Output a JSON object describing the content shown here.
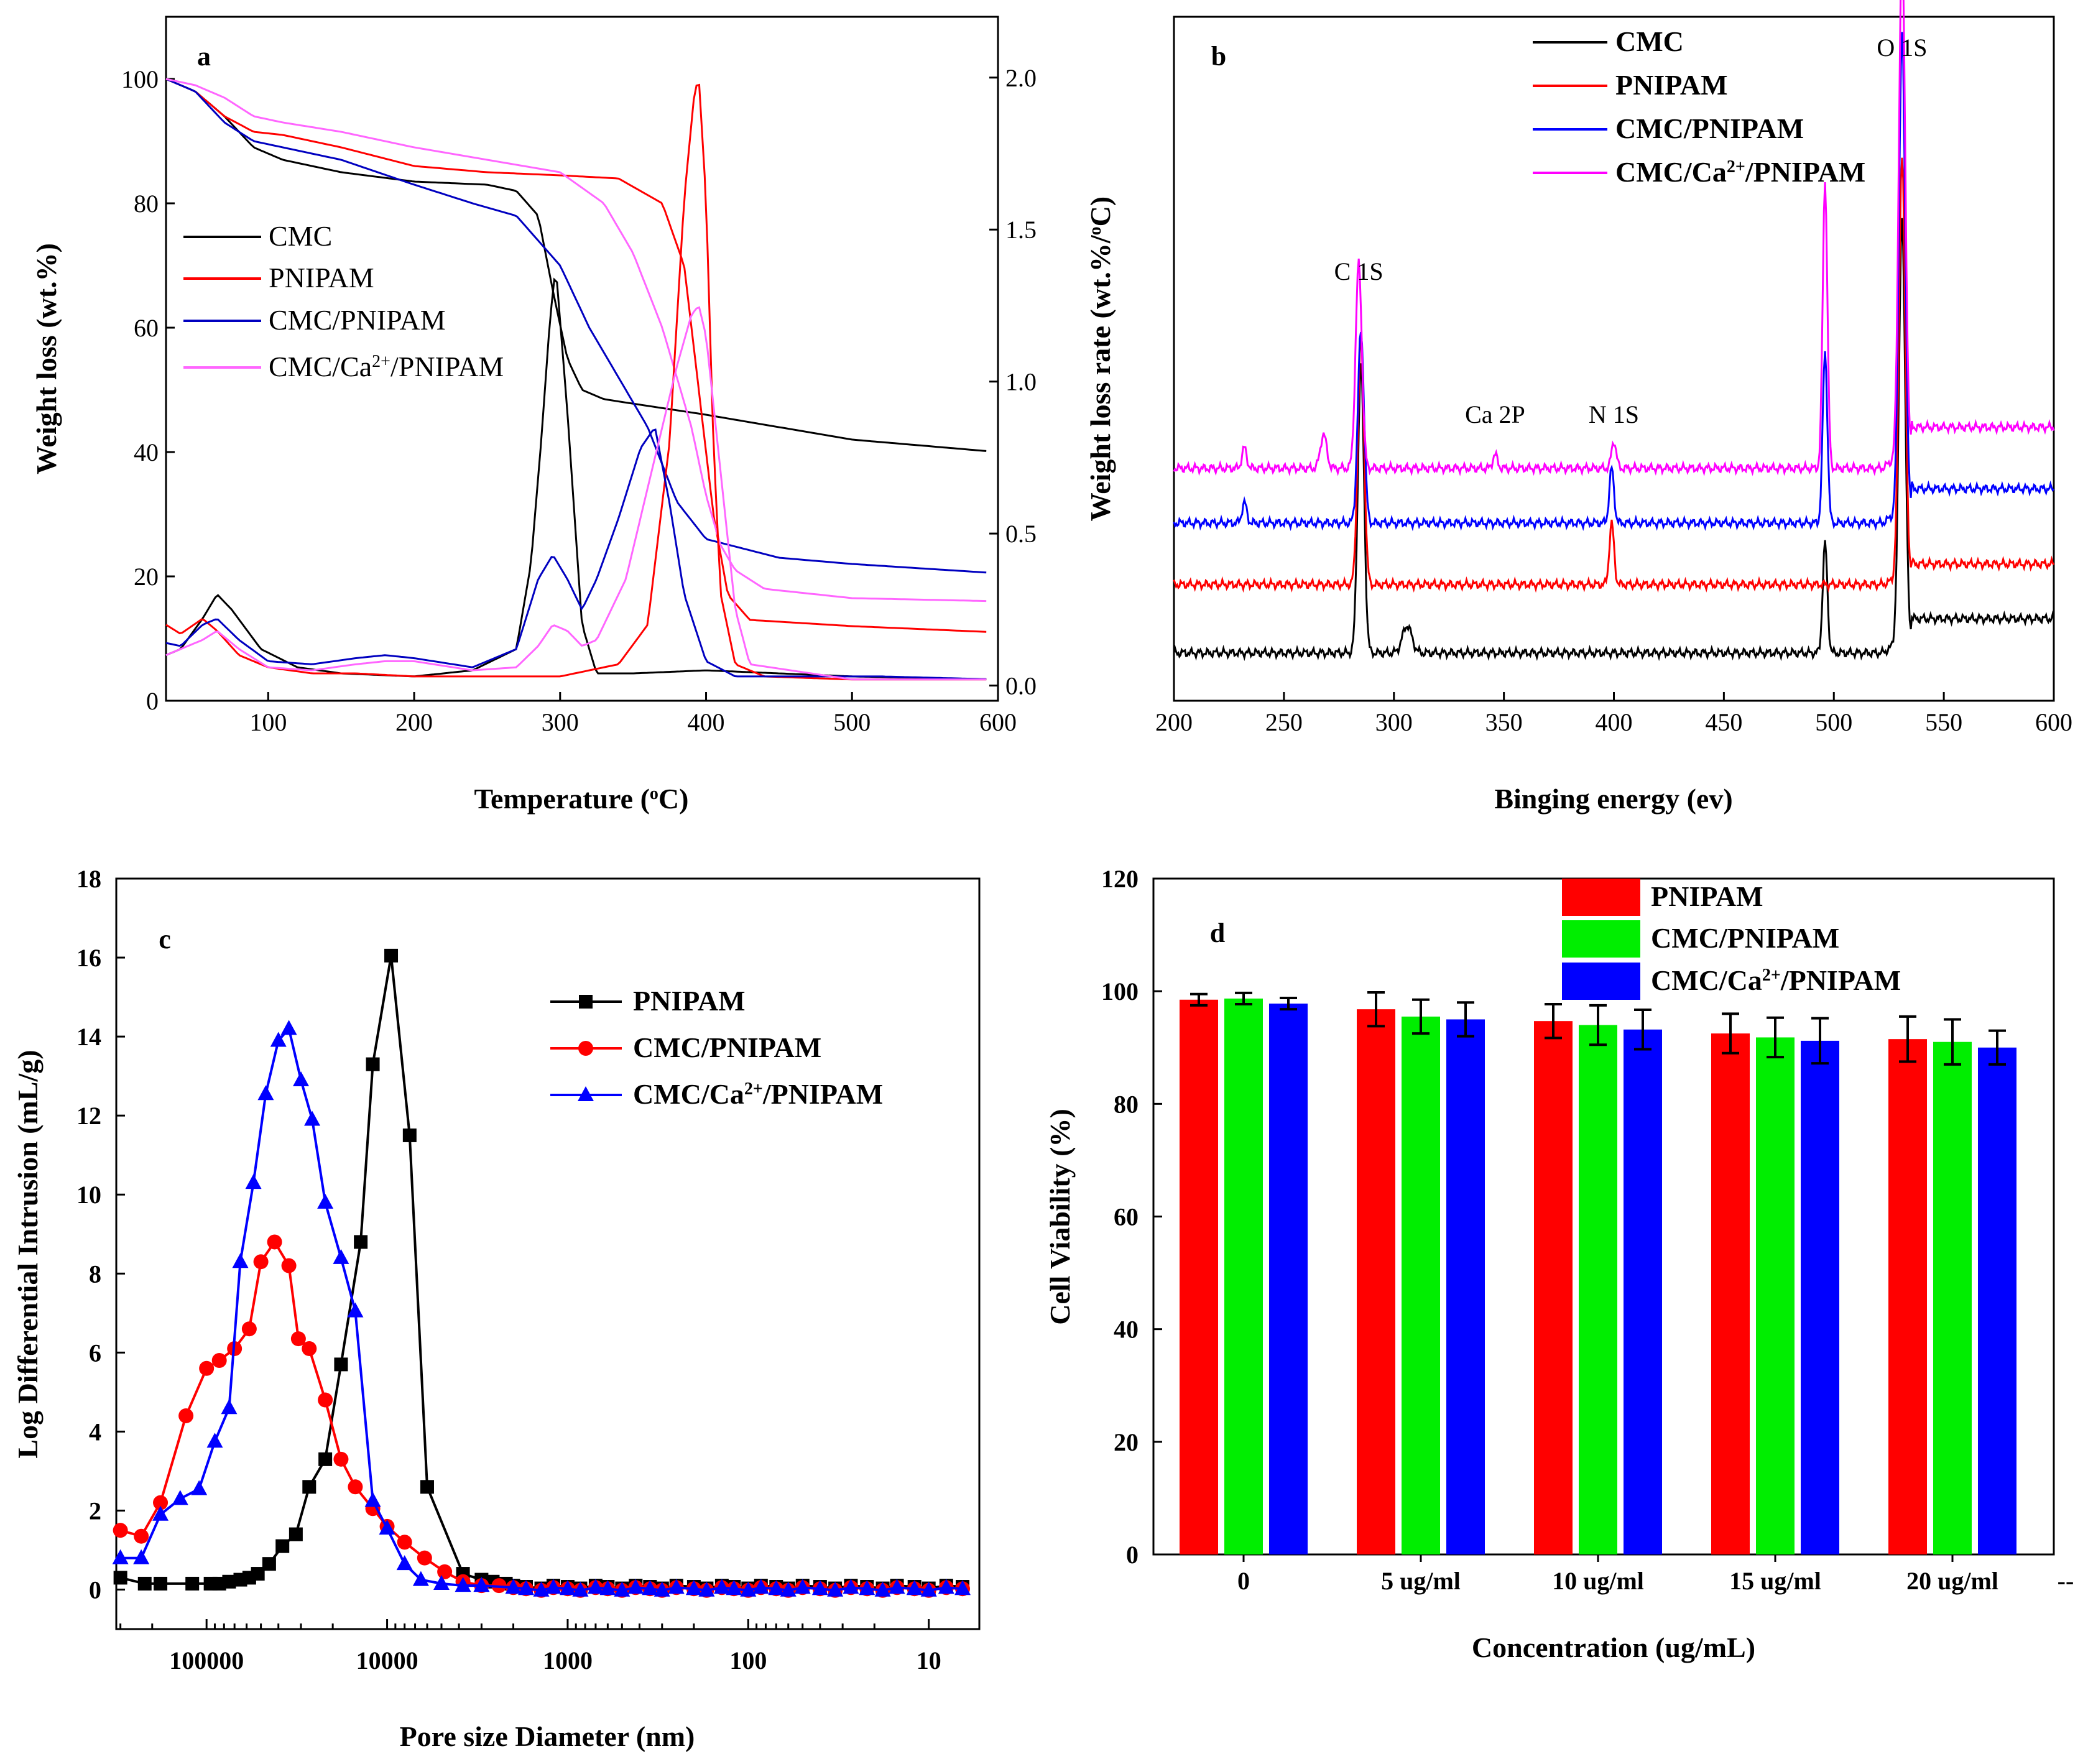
{
  "chart_data": [
    {
      "panel": "a",
      "type": "line",
      "xlabel": "Temperature (oC)",
      "xlabel_parts": [
        "Temperature (",
        "o",
        "C)"
      ],
      "ylabel": "Weight loss (wt.%)",
      "y2label": "Weight loss rate (wt.%/oC)",
      "y2label_parts": [
        "Weight loss rate (wt.%/",
        "o",
        "C)"
      ],
      "xlim": [
        30,
        600
      ],
      "ylim": [
        0,
        110
      ],
      "y2lim": [
        -0.05,
        2.2
      ],
      "xticks": [
        "100",
        "200",
        "300",
        "400",
        "500",
        "600"
      ],
      "yticks": [
        "0",
        "20",
        "40",
        "60",
        "80",
        "100"
      ],
      "y2ticks": [
        "0.0",
        "0.5",
        "1.0",
        "1.5",
        "2.0"
      ],
      "legend": [
        "CMC",
        "PNIPAM",
        "CMC/PNIPAM",
        "CMC/Ca2+/PNIPAM"
      ],
      "legend_sup": [
        "",
        "",
        "",
        "2+"
      ],
      "legend_pre": [
        "CMC",
        "PNIPAM",
        "CMC/PNIPAM",
        "CMC/Ca"
      ],
      "legend_post": [
        "",
        "",
        "",
        "/PNIPAM"
      ],
      "colors": [
        "#000000",
        "#ff0000",
        "#0000c0",
        "#ff66ff"
      ],
      "tg_series": [
        {
          "name": "CMC",
          "x": [
            30,
            50,
            70,
            90,
            110,
            150,
            200,
            250,
            270,
            285,
            295,
            305,
            315,
            330,
            400,
            500,
            600
          ],
          "y": [
            100,
            98,
            94,
            89,
            87,
            85,
            83.5,
            83,
            82,
            78,
            66,
            55,
            50,
            48.5,
            46,
            42,
            40
          ]
        },
        {
          "name": "PNIPAM",
          "x": [
            30,
            50,
            70,
            90,
            110,
            150,
            200,
            250,
            300,
            340,
            370,
            385,
            395,
            405,
            415,
            430,
            500,
            600
          ],
          "y": [
            100,
            98,
            94,
            91.5,
            91,
            89,
            86,
            85,
            84.5,
            84,
            80,
            70,
            50,
            30,
            17,
            13,
            12,
            11
          ]
        },
        {
          "name": "CMC/PNIPAM",
          "x": [
            30,
            50,
            70,
            90,
            110,
            150,
            200,
            240,
            270,
            300,
            320,
            340,
            360,
            380,
            400,
            450,
            500,
            600
          ],
          "y": [
            100,
            98,
            93,
            90,
            89,
            87,
            83,
            80,
            78,
            70,
            60,
            52,
            44,
            32,
            26,
            23,
            22,
            20.5
          ]
        },
        {
          "name": "CMC/Ca2+/PNIPAM",
          "x": [
            30,
            50,
            70,
            90,
            110,
            150,
            200,
            250,
            300,
            330,
            350,
            370,
            390,
            400,
            410,
            420,
            440,
            500,
            600
          ],
          "y": [
            100,
            99,
            97,
            94,
            93,
            91.5,
            89,
            87,
            85,
            80,
            72,
            60,
            44,
            33,
            25,
            21,
            18,
            16.5,
            16
          ]
        }
      ],
      "dtg_series": [
        {
          "name": "CMC",
          "x": [
            30,
            40,
            55,
            65,
            75,
            95,
            120,
            150,
            200,
            240,
            270,
            280,
            287,
            293,
            297,
            300,
            305,
            315,
            325,
            350,
            400,
            500,
            600
          ],
          "y": [
            0.1,
            0.12,
            0.22,
            0.3,
            0.25,
            0.12,
            0.06,
            0.04,
            0.03,
            0.05,
            0.12,
            0.4,
            0.8,
            1.2,
            1.38,
            1.2,
            0.9,
            0.2,
            0.04,
            0.04,
            0.05,
            0.03,
            0.02
          ]
        },
        {
          "name": "PNIPAM",
          "x": [
            30,
            40,
            55,
            65,
            80,
            100,
            130,
            160,
            200,
            250,
            300,
            340,
            360,
            375,
            385,
            392,
            395,
            400,
            405,
            410,
            420,
            440,
            500,
            600
          ],
          "y": [
            0.2,
            0.17,
            0.22,
            0.18,
            0.1,
            0.06,
            0.04,
            0.04,
            0.03,
            0.03,
            0.03,
            0.07,
            0.2,
            0.8,
            1.6,
            1.95,
            2.0,
            1.6,
            0.8,
            0.3,
            0.07,
            0.03,
            0.02,
            0.02
          ]
        },
        {
          "name": "CMC/PNIPAM",
          "x": [
            30,
            40,
            55,
            65,
            80,
            100,
            130,
            160,
            180,
            200,
            240,
            270,
            285,
            295,
            305,
            315,
            325,
            340,
            355,
            365,
            375,
            385,
            400,
            420,
            520,
            600
          ],
          "y": [
            0.14,
            0.13,
            0.2,
            0.22,
            0.15,
            0.08,
            0.07,
            0.09,
            0.1,
            0.09,
            0.06,
            0.12,
            0.35,
            0.43,
            0.35,
            0.25,
            0.35,
            0.55,
            0.78,
            0.85,
            0.6,
            0.3,
            0.08,
            0.03,
            0.03,
            0.02
          ]
        },
        {
          "name": "CMC/Ca2+/PNIPAM",
          "x": [
            30,
            40,
            55,
            65,
            80,
            100,
            130,
            160,
            180,
            200,
            240,
            270,
            285,
            295,
            305,
            315,
            325,
            345,
            365,
            380,
            390,
            395,
            400,
            410,
            420,
            430,
            500,
            600
          ],
          "y": [
            0.1,
            0.12,
            0.15,
            0.18,
            0.12,
            0.06,
            0.05,
            0.07,
            0.08,
            0.08,
            0.05,
            0.06,
            0.13,
            0.2,
            0.18,
            0.13,
            0.15,
            0.35,
            0.75,
            1.05,
            1.22,
            1.25,
            1.15,
            0.7,
            0.25,
            0.07,
            0.02,
            0.02
          ]
        }
      ]
    },
    {
      "panel": "b",
      "type": "line",
      "xlabel": "Binging energy (ev)",
      "ylabel": "",
      "xlim": [
        200,
        600
      ],
      "xticks": [
        "200",
        "250",
        "300",
        "350",
        "400",
        "450",
        "500",
        "550",
        "600"
      ],
      "legend": [
        "CMC",
        "PNIPAM",
        "CMC/PNIPAM",
        "CMC/Ca2+/PNIPAM"
      ],
      "legend_pre": [
        "CMC",
        "PNIPAM",
        "CMC/PNIPAM",
        "CMC/Ca"
      ],
      "legend_sup": [
        "",
        "",
        "",
        "2+"
      ],
      "legend_post": [
        "",
        "",
        "",
        "/PNIPAM"
      ],
      "colors": [
        "#000000",
        "#ff0000",
        "#0000ff",
        "#ff00ff"
      ],
      "annotations": [
        {
          "text": "C 1S",
          "x": 284
        },
        {
          "text": "Ca 2P",
          "x": 346
        },
        {
          "text": "N 1S",
          "x": 400
        },
        {
          "text": "O 1S",
          "x": 531
        }
      ],
      "baselines": [
        0.07,
        0.17,
        0.26,
        0.34
      ],
      "peaks": [
        {
          "name": "CMC",
          "peaks": [
            [
              285,
              0.42,
              2.0
            ],
            [
              306,
              0.04,
              3.0
            ],
            [
              496,
              0.16,
              1.5
            ],
            [
              531,
              0.62,
              2.0
            ]
          ]
        },
        {
          "name": "PNIPAM",
          "peaks": [
            [
              285,
              0.36,
              2.0
            ],
            [
              399,
              0.09,
              1.5
            ],
            [
              531,
              0.62,
              2.0
            ]
          ]
        },
        {
          "name": "CMC/PNIPAM",
          "peaks": [
            [
              232,
              0.03,
              1.5
            ],
            [
              285,
              0.28,
              2.0
            ],
            [
              399,
              0.08,
              1.5
            ],
            [
              496,
              0.25,
              1.5
            ],
            [
              531,
              0.7,
              2.0
            ]
          ]
        },
        {
          "name": "CMC/Ca2+/PNIPAM",
          "peaks": [
            [
              232,
              0.03,
              1.5
            ],
            [
              268,
              0.05,
              2.0
            ],
            [
              284,
              0.3,
              2.0
            ],
            [
              346,
              0.02,
              1.5
            ],
            [
              400,
              0.04,
              1.5
            ],
            [
              496,
              0.42,
              1.5
            ],
            [
              531,
              0.75,
              2.0
            ]
          ]
        }
      ],
      "plateau_rise": [
        0.05,
        0.03,
        0.05,
        0.06
      ]
    },
    {
      "panel": "c",
      "type": "line",
      "xlabel": "Pore size Diameter (nm)",
      "ylabel": "Log Differential Intrusion (mL/g)",
      "xscale": "log-reversed",
      "xlim_log10": [
        5.5,
        0.72
      ],
      "ylim": [
        -1,
        18
      ],
      "xticks": [
        "100000",
        "10000",
        "1000",
        "100",
        "10"
      ],
      "yticks": [
        "0",
        "2",
        "4",
        "6",
        "8",
        "10",
        "12",
        "14",
        "16",
        "18"
      ],
      "legend": [
        "PNIPAM",
        "CMC/PNIPAM",
        "CMC/Ca2+/PNIPAM"
      ],
      "legend_pre": [
        "PNIPAM",
        "CMC/PNIPAM",
        "CMC/Ca"
      ],
      "legend_sup": [
        "",
        "",
        "2+"
      ],
      "legend_post": [
        "",
        "",
        "/PNIPAM"
      ],
      "colors": [
        "#000000",
        "#ff0000",
        "#0000ff"
      ],
      "markers": [
        "square",
        "circle",
        "triangle"
      ],
      "series": [
        {
          "name": "PNIPAM",
          "x": [
            300000,
            220000,
            180000,
            120000,
            95000,
            85000,
            75000,
            65000,
            58000,
            52000,
            45000,
            38000,
            32000,
            27000,
            22000,
            18000,
            14000,
            12000,
            9500,
            7500,
            6000,
            3800,
            3000,
            2600,
            2200
          ],
          "y": [
            0.3,
            0.15,
            0.15,
            0.15,
            0.15,
            0.15,
            0.2,
            0.25,
            0.3,
            0.4,
            0.65,
            1.1,
            1.4,
            2.6,
            3.3,
            5.7,
            8.8,
            13.3,
            16.05,
            11.5,
            2.6,
            0.4,
            0.25,
            0.2,
            0.15
          ]
        },
        {
          "name": "CMC/PNIPAM",
          "x": [
            300000,
            230000,
            180000,
            130000,
            100000,
            85000,
            70000,
            58000,
            50000,
            42000,
            35000,
            31000,
            27000,
            22000,
            18000,
            15000,
            12000,
            10000,
            8000,
            6200,
            4800,
            3800,
            3000,
            2400
          ],
          "y": [
            1.5,
            1.35,
            2.2,
            4.4,
            5.6,
            5.8,
            6.1,
            6.6,
            8.3,
            8.8,
            8.2,
            6.35,
            6.1,
            4.8,
            3.3,
            2.6,
            2.05,
            1.6,
            1.2,
            0.8,
            0.45,
            0.2,
            0.1,
            0.1
          ]
        },
        {
          "name": "CMC/Ca2+/PNIPAM",
          "x": [
            300000,
            230000,
            180000,
            140000,
            110000,
            90000,
            75000,
            65000,
            55000,
            47000,
            40000,
            35000,
            30000,
            26000,
            22000,
            18000,
            15000,
            12000,
            10000,
            8000,
            6500,
            5000,
            3800,
            3000
          ],
          "y": [
            0.8,
            0.8,
            1.9,
            2.3,
            2.55,
            3.75,
            4.6,
            8.3,
            10.3,
            12.55,
            13.9,
            14.2,
            12.9,
            11.9,
            9.8,
            8.4,
            7.05,
            2.25,
            1.55,
            0.65,
            0.25,
            0.15,
            0.1,
            0.1
          ]
        }
      ],
      "tail_x": [
        2000,
        1700,
        1400,
        1200,
        1000,
        850,
        700,
        600,
        500,
        420,
        350,
        300,
        250,
        200,
        170,
        140,
        120,
        100,
        85,
        70,
        60,
        50,
        40,
        33,
        27,
        22,
        18,
        15,
        12,
        10,
        8,
        6.5
      ],
      "tail_y": [
        0.05,
        0.02,
        -0.02
      ]
    },
    {
      "panel": "d",
      "type": "bar",
      "xlabel": "Concentration (ug/mL)",
      "ylabel": "Cell Viability (%)",
      "ylim": [
        0,
        120
      ],
      "yticks": [
        "0",
        "20",
        "40",
        "60",
        "80",
        "100",
        "120"
      ],
      "categories": [
        "0",
        "5 ug/ml",
        "10 ug/ml",
        "15 ug/ml",
        "20 ug/ml"
      ],
      "trailing_mark": "--",
      "legend": [
        "PNIPAM",
        "CMC/PNIPAM",
        "CMC/Ca2+/PNIPAM"
      ],
      "legend_pre": [
        "PNIPAM",
        "CMC/PNIPAM",
        "CMC/Ca"
      ],
      "legend_sup": [
        "",
        "",
        "2+"
      ],
      "legend_post": [
        "",
        "",
        "/PNIPAM"
      ],
      "colors": [
        "#ff0000",
        "#00ee00",
        "#0000ff"
      ],
      "series": [
        {
          "name": "PNIPAM",
          "values": [
            98.5,
            96.8,
            94.7,
            92.5,
            91.5
          ],
          "errors": [
            1.0,
            3.0,
            3.0,
            3.5,
            4.0
          ]
        },
        {
          "name": "CMC/PNIPAM",
          "values": [
            98.7,
            95.5,
            94.0,
            91.8,
            91.0
          ],
          "errors": [
            1.0,
            3.0,
            3.5,
            3.5,
            4.0
          ]
        },
        {
          "name": "CMC/Ca2+/PNIPAM",
          "values": [
            97.8,
            95.0,
            93.2,
            91.2,
            90.0
          ],
          "errors": [
            1.0,
            3.0,
            3.5,
            4.0,
            3.0
          ]
        }
      ]
    }
  ],
  "panel_letters": [
    "a",
    "b",
    "c",
    "d"
  ]
}
